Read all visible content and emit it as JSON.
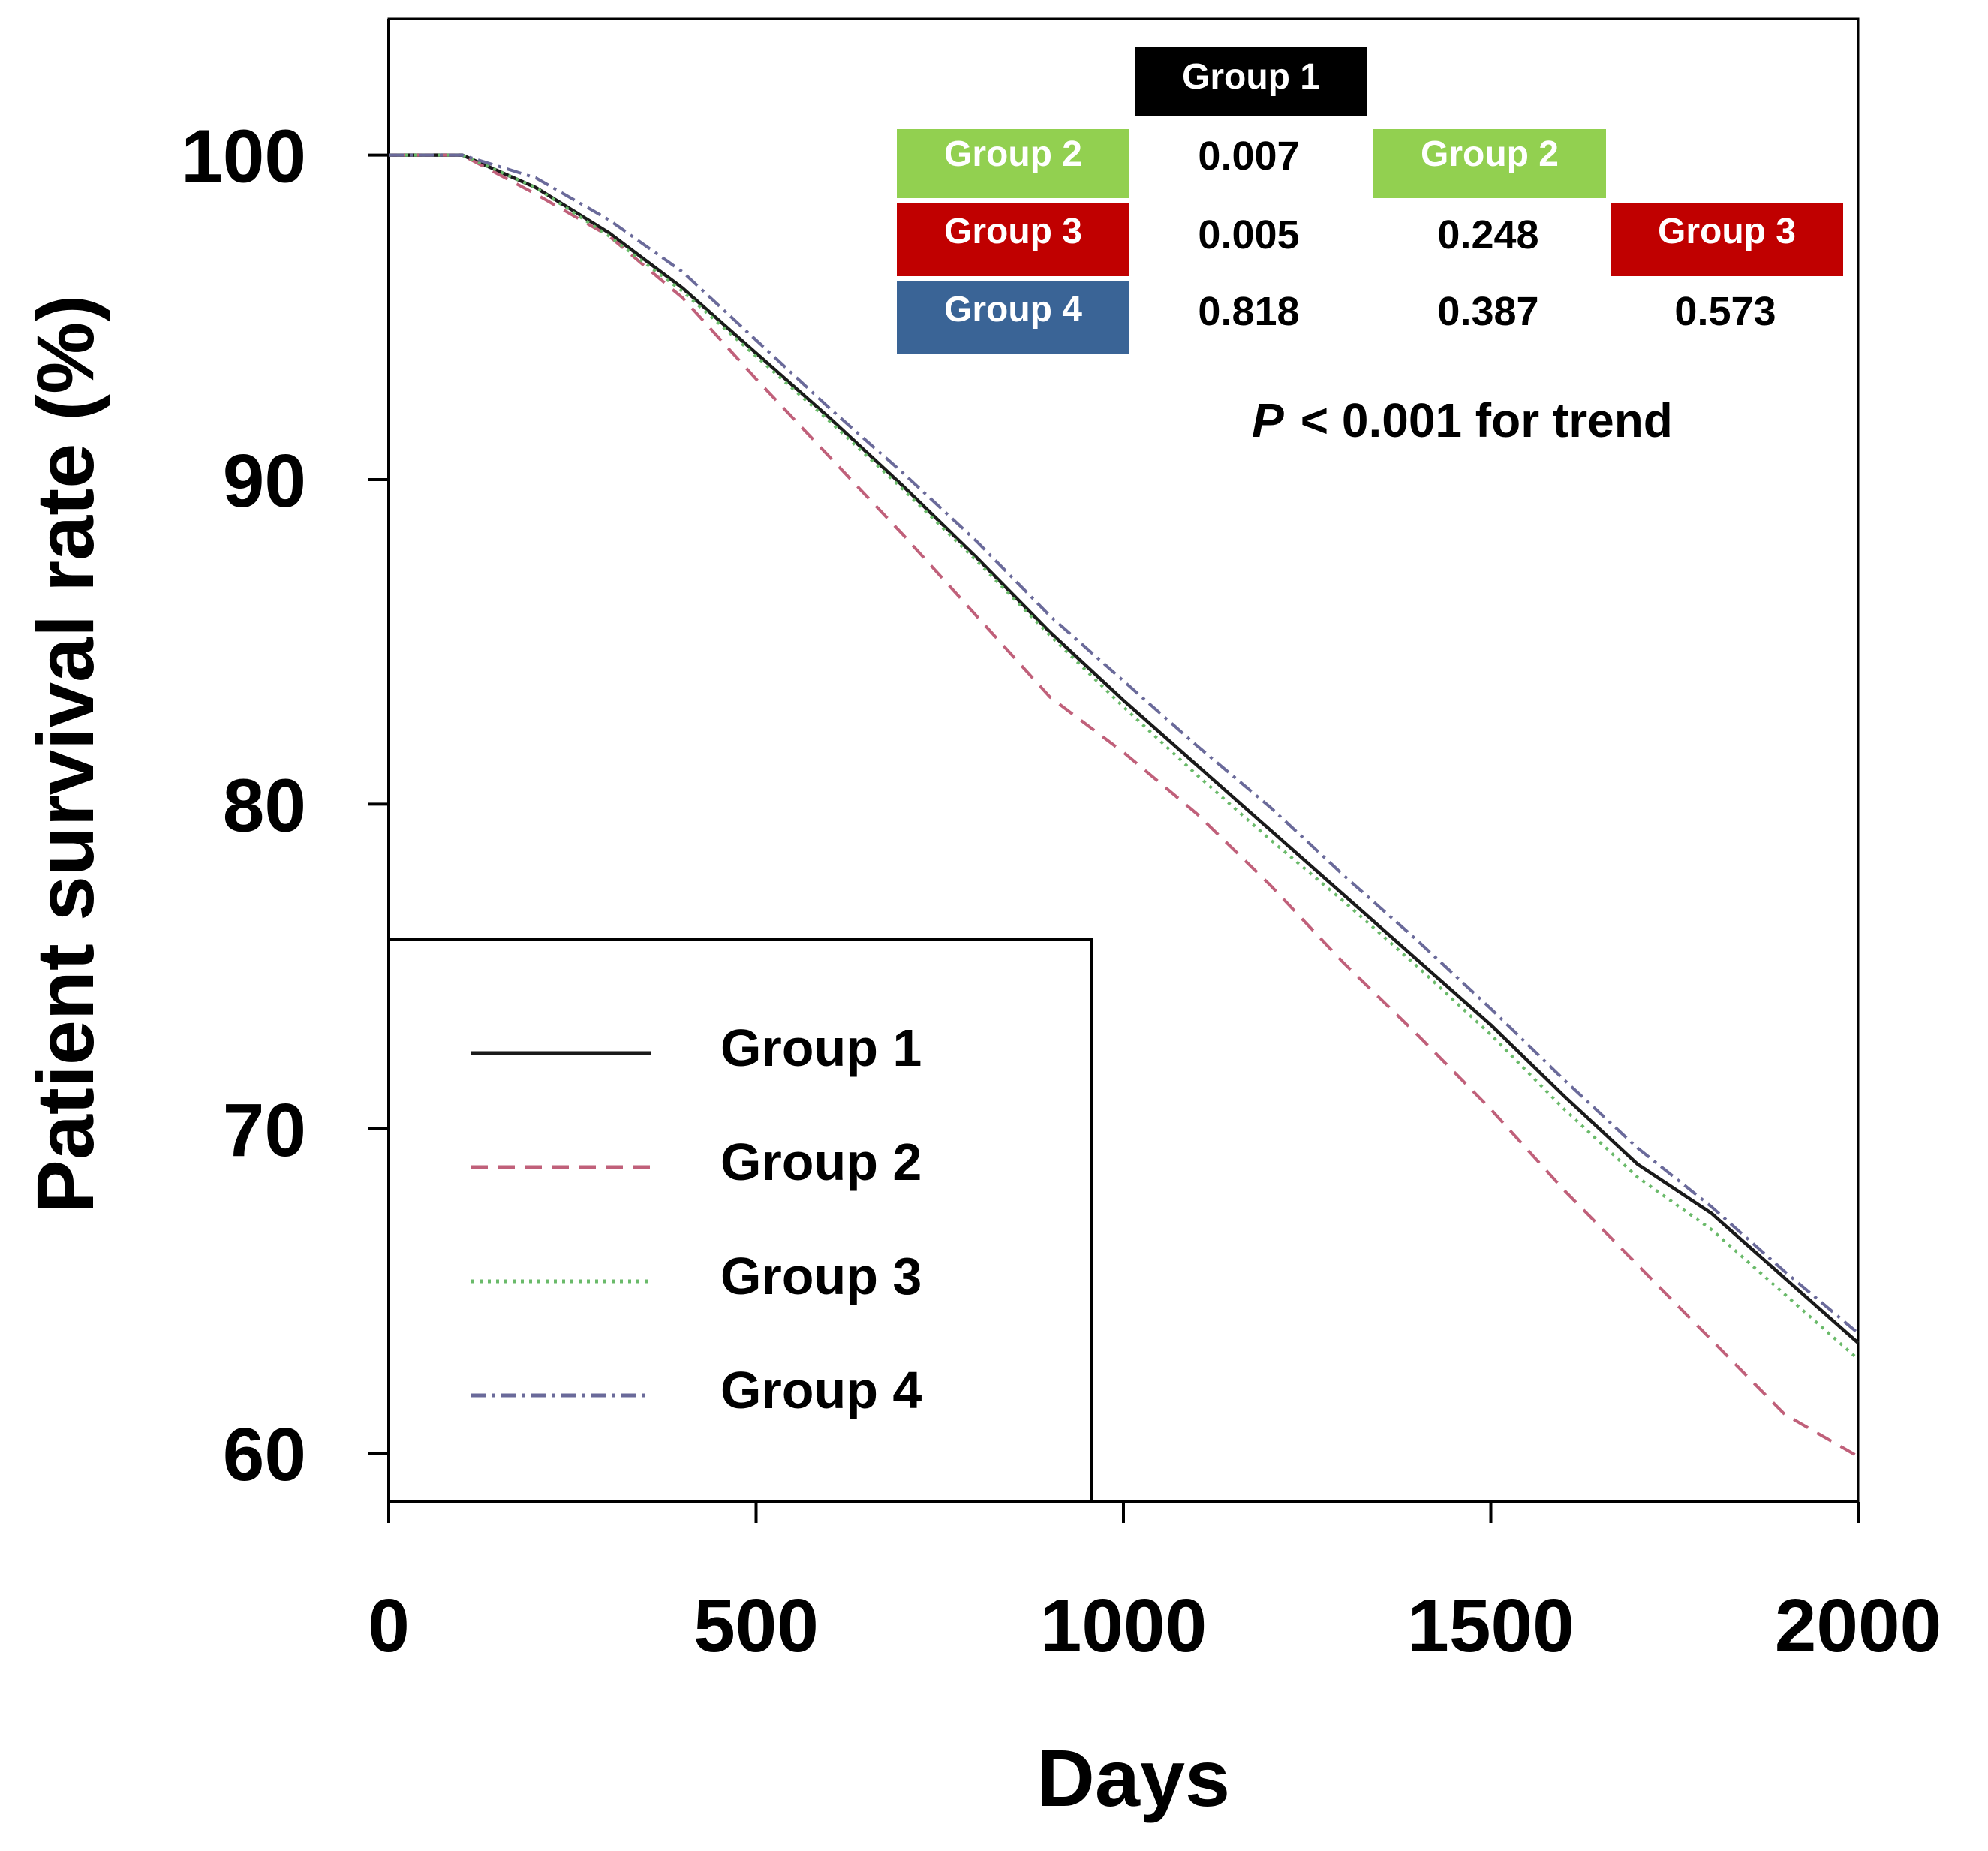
{
  "chart_data": {
    "type": "line",
    "xlabel": "Days",
    "ylabel": "Patient survival rate (%)",
    "xlim": [
      0,
      2000
    ],
    "ylim": [
      58.5,
      104.2
    ],
    "xticks": [
      "0",
      "500",
      "1000",
      "1500",
      "2000"
    ],
    "yticks": [
      "100",
      "90",
      "80",
      "70",
      "60"
    ],
    "x": [
      0,
      100,
      200,
      300,
      400,
      500,
      600,
      700,
      800,
      900,
      1000,
      1100,
      1200,
      1300,
      1400,
      1500,
      1600,
      1700,
      1800,
      1900,
      2000
    ],
    "series": [
      {
        "name": "Group 1",
        "color": "#1a1a1a",
        "dash": "solid",
        "values": [
          100,
          100,
          99.0,
          97.6,
          95.9,
          93.9,
          91.9,
          89.8,
          87.6,
          85.3,
          83.2,
          81.2,
          79.2,
          77.2,
          75.2,
          73.2,
          71.0,
          68.9,
          67.4,
          65.4,
          63.4
        ]
      },
      {
        "name": "Group 2",
        "color": "#c0607a",
        "dash": "dashed",
        "values": [
          100,
          100,
          98.8,
          97.5,
          95.6,
          93.1,
          90.7,
          88.3,
          85.8,
          83.3,
          81.6,
          79.7,
          77.5,
          75.1,
          72.9,
          70.6,
          68.1,
          65.8,
          63.5,
          61.2,
          59.9
        ]
      },
      {
        "name": "Group 3",
        "color": "#6aba6a",
        "dash": "dotted",
        "values": [
          100,
          100,
          99.0,
          97.5,
          95.8,
          93.8,
          91.8,
          89.7,
          87.5,
          85.2,
          83.0,
          80.9,
          78.9,
          77.0,
          75.0,
          72.9,
          70.6,
          68.5,
          66.9,
          64.9,
          62.9
        ]
      },
      {
        "name": "Group 4",
        "color": "#6a6a9a",
        "dash": "dashdot",
        "values": [
          100,
          100,
          99.3,
          98.0,
          96.4,
          94.3,
          92.2,
          90.2,
          88.1,
          85.8,
          83.8,
          81.8,
          79.9,
          77.8,
          75.8,
          73.7,
          71.5,
          69.4,
          67.6,
          65.6,
          63.7
        ]
      }
    ],
    "legend": {
      "placement": "bottom-left",
      "entries": [
        "Group 1",
        "Group 2",
        "Group 3",
        "Group 4"
      ]
    },
    "pvalue_table": {
      "col_headers": [
        {
          "label": "Group 1",
          "color": "#000000"
        },
        {
          "label": "Group 2",
          "color": "#92d050"
        },
        {
          "label": "Group 3",
          "color": "#c00000"
        }
      ],
      "row_headers": [
        {
          "label": "Group 2",
          "color": "#92d050"
        },
        {
          "label": "Group 3",
          "color": "#c00000"
        },
        {
          "label": "Group 4",
          "color": "#3a6496"
        }
      ],
      "values": [
        [
          "0.007",
          "",
          ""
        ],
        [
          "0.005",
          "0.248",
          ""
        ],
        [
          "0.818",
          "0.387",
          "0.573"
        ]
      ]
    },
    "annotation": {
      "p_symbol": "P",
      "rest": "< 0.001 for trend"
    }
  }
}
